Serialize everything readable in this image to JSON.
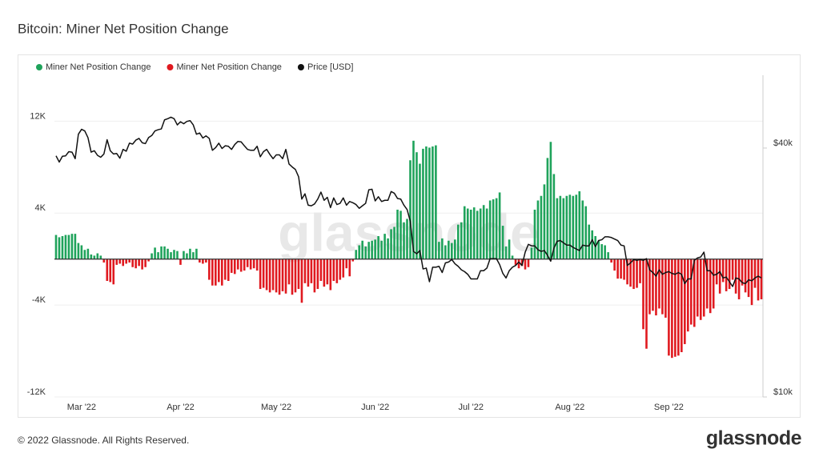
{
  "chart_data": {
    "type": "bar",
    "title": "Bitcoin: Miner Net Position Change",
    "watermark": "glassnode",
    "legend": "top-left",
    "grid": true,
    "ylim": [
      -12000,
      16000
    ],
    "yticks": [
      {
        "value": -12000,
        "label": "-12K"
      },
      {
        "value": -4000,
        "label": "-4K"
      },
      {
        "value": 4000,
        "label": "4K"
      },
      {
        "value": 12000,
        "label": "12K"
      }
    ],
    "y2scale": "log",
    "y2lim": [
      10000,
      60000
    ],
    "y2ticks": [
      {
        "value": 10000,
        "label": "$10k"
      },
      {
        "value": 40000,
        "label": "$40k"
      }
    ],
    "categories": [
      null,
      null,
      null,
      null,
      null,
      null,
      null,
      null,
      "Mar '22",
      null,
      null,
      null,
      null,
      null,
      null,
      null,
      null,
      null,
      null,
      null,
      null,
      null,
      null,
      null,
      null,
      null,
      null,
      null,
      null,
      null,
      null,
      null,
      null,
      null,
      null,
      null,
      null,
      null,
      null,
      "Apr '22",
      null,
      null,
      null,
      null,
      null,
      null,
      null,
      null,
      null,
      null,
      null,
      null,
      null,
      null,
      null,
      null,
      null,
      null,
      null,
      null,
      null,
      null,
      null,
      null,
      null,
      null,
      null,
      null,
      null,
      "May '22",
      null,
      null,
      null,
      null,
      null,
      null,
      null,
      null,
      null,
      null,
      null,
      null,
      null,
      null,
      null,
      null,
      null,
      null,
      null,
      null,
      null,
      null,
      null,
      null,
      null,
      null,
      null,
      null,
      null,
      null,
      "Jun '22",
      null,
      null,
      null,
      null,
      null,
      null,
      null,
      null,
      null,
      null,
      null,
      null,
      null,
      null,
      null,
      null,
      null,
      null,
      null,
      null,
      null,
      null,
      null,
      null,
      null,
      null,
      null,
      null,
      null,
      "Jul '22",
      null,
      null,
      null,
      null,
      null,
      null,
      null,
      null,
      null,
      null,
      null,
      null,
      null,
      null,
      null,
      null,
      null,
      null,
      null,
      null,
      null,
      null,
      null,
      null,
      null,
      null,
      null,
      null,
      null,
      null,
      "Aug '22",
      null,
      null,
      null,
      null,
      null,
      null,
      null,
      null,
      null,
      null,
      null,
      null,
      null,
      null,
      null,
      null,
      null,
      null,
      null,
      null,
      null,
      null,
      null,
      null,
      null,
      null,
      null,
      null,
      null,
      null,
      "Sep '22",
      null,
      null,
      null,
      null,
      null,
      null,
      null,
      null,
      null,
      null,
      null,
      null,
      null,
      null,
      null,
      null,
      null,
      null,
      null,
      null,
      null,
      null,
      null,
      null,
      null,
      null,
      null,
      null,
      null
    ],
    "series": [
      {
        "name": "Miner Net Position Change",
        "color": "#1fa35b",
        "values": [
          2100,
          1900,
          2000,
          2100,
          2100,
          2200,
          2200,
          1400,
          1200,
          800,
          900,
          400,
          300,
          500,
          300,
          null,
          null,
          null,
          null,
          null,
          null,
          null,
          null,
          null,
          null,
          null,
          null,
          null,
          null,
          null,
          500,
          1000,
          600,
          1100,
          1100,
          900,
          600,
          800,
          700,
          null,
          700,
          500,
          900,
          600,
          900,
          null,
          null,
          null,
          null,
          null,
          null,
          null,
          null,
          null,
          null,
          null,
          null,
          null,
          null,
          null,
          null,
          null,
          null,
          null,
          null,
          null,
          null,
          null,
          null,
          null,
          null,
          null,
          null,
          null,
          null,
          null,
          null,
          null,
          null,
          null,
          null,
          null,
          null,
          null,
          null,
          null,
          null,
          null,
          null,
          null,
          null,
          null,
          null,
          null,
          800,
          1200,
          1600,
          1100,
          1500,
          1600,
          1700,
          2000,
          1600,
          2200,
          1800,
          2600,
          2800,
          4300,
          4200,
          3200,
          3500,
          8600,
          10300,
          9300,
          8300,
          9600,
          9800,
          9700,
          9800,
          9900,
          1500,
          1800,
          1200,
          1600,
          1400,
          1700,
          3000,
          3200,
          4600,
          4400,
          4300,
          4500,
          4200,
          4400,
          4700,
          4400,
          5100,
          5200,
          5300,
          5800,
          2900,
          1100,
          1700,
          300,
          null,
          null,
          null,
          null,
          null,
          1000,
          4300,
          5100,
          5500,
          6500,
          8800,
          10200,
          7400,
          5300,
          5500,
          5300,
          5500,
          5600,
          5500,
          5600,
          5900,
          5100,
          4600,
          3000,
          2500,
          2000,
          1600,
          1300,
          1200,
          600,
          null,
          null,
          null,
          null,
          null,
          null,
          null,
          null,
          null,
          null,
          null,
          null,
          null,
          null,
          null,
          null,
          null,
          null,
          null,
          null,
          null,
          null,
          null,
          null,
          null,
          null,
          null,
          null,
          null,
          null,
          null,
          null,
          null,
          null,
          null,
          null,
          null,
          null,
          null,
          null,
          null,
          null,
          null,
          null,
          null,
          null,
          null,
          null
        ]
      },
      {
        "name": "Miner Net Position Change",
        "color": "#e0191f",
        "values": [
          null,
          null,
          null,
          null,
          null,
          null,
          null,
          null,
          null,
          null,
          null,
          null,
          null,
          null,
          null,
          -300,
          -1900,
          -2000,
          -2200,
          -500,
          -400,
          -600,
          -400,
          -300,
          -700,
          -800,
          -600,
          -900,
          -700,
          -200,
          null,
          null,
          null,
          null,
          null,
          null,
          null,
          null,
          null,
          -500,
          null,
          null,
          null,
          null,
          null,
          -300,
          -400,
          -300,
          -1800,
          -2300,
          -2300,
          -2000,
          -2300,
          -1800,
          -1900,
          -1200,
          -1300,
          -900,
          -1100,
          -1000,
          -700,
          -900,
          -800,
          -1000,
          -2600,
          -2500,
          -2700,
          -2900,
          -2700,
          -2900,
          -3100,
          -2800,
          -3000,
          -2200,
          -3100,
          -2900,
          -2600,
          -3800,
          -2100,
          -2400,
          -2100,
          -2900,
          -2600,
          -1900,
          -2400,
          -2200,
          -2700,
          -1900,
          -2100,
          -1800,
          -1600,
          -800,
          -1500,
          -200,
          null,
          null,
          null,
          null,
          null,
          null,
          null,
          null,
          null,
          null,
          null,
          null,
          null,
          null,
          null,
          null,
          null,
          null,
          null,
          null,
          null,
          null,
          null,
          null,
          null,
          null,
          null,
          null,
          null,
          null,
          null,
          null,
          null,
          null,
          null,
          null,
          null,
          null,
          null,
          null,
          null,
          null,
          null,
          null,
          null,
          null,
          null,
          null,
          null,
          null,
          -500,
          -800,
          -600,
          -900,
          -700,
          null,
          null,
          null,
          null,
          null,
          null,
          null,
          null,
          null,
          null,
          null,
          null,
          null,
          null,
          null,
          null,
          null,
          null,
          null,
          null,
          null,
          null,
          null,
          null,
          null,
          -300,
          -1000,
          -1700,
          -1700,
          -1800,
          -2200,
          -2400,
          -2600,
          -2500,
          -2100,
          -6100,
          -7800,
          -4800,
          -4500,
          -4900,
          -4300,
          -4800,
          -5100,
          -8400,
          -8600,
          -8500,
          -8400,
          -8100,
          -7400,
          -6300,
          -5700,
          -5900,
          -5000,
          -5300,
          -5000,
          -4300,
          -4700,
          -4300,
          -2200,
          -3000,
          -2000,
          -2800,
          -2600,
          -1800,
          -3000,
          -3500,
          -2300,
          -2900,
          -3300,
          -4000,
          -2500,
          -3600,
          -3500
        ]
      },
      {
        "name": "Price [USD]",
        "color": "#111111",
        "type": "line",
        "axis": "y2",
        "values": [
          38300,
          37000,
          38200,
          38300,
          39200,
          39100,
          37700,
          43200,
          44400,
          44000,
          42400,
          39100,
          39400,
          38400,
          38000,
          38700,
          41900,
          39400,
          38700,
          38800,
          37800,
          39700,
          39300,
          41100,
          40900,
          41800,
          42200,
          41200,
          41000,
          42400,
          42900,
          44000,
          44300,
          44500,
          46800,
          47100,
          47500,
          47100,
          45500,
          46300,
          45800,
          46400,
          46600,
          45500,
          43200,
          43500,
          42300,
          42800,
          42200,
          39500,
          40100,
          41100,
          39900,
          40500,
          40400,
          39700,
          40800,
          41500,
          41400,
          40500,
          39700,
          39500,
          39500,
          40400,
          38100,
          39200,
          39700,
          38600,
          37700,
          38500,
          38500,
          37700,
          39700,
          36600,
          36000,
          35500,
          34100,
          30100,
          31000,
          29100,
          29000,
          29300,
          30100,
          31300,
          29900,
          30400,
          28700,
          30300,
          29200,
          29400,
          30300,
          29100,
          29700,
          29500,
          29200,
          28600,
          29000,
          29400,
          31700,
          31800,
          29800,
          30500,
          29700,
          29900,
          29900,
          31400,
          31100,
          30200,
          30100,
          29100,
          28400,
          26600,
          22500,
          22200,
          22600,
          20400,
          20500,
          19000,
          20600,
          20600,
          20700,
          20000,
          21100,
          21200,
          21500,
          21000,
          20700,
          20300,
          20100,
          19800,
          19300,
          19300,
          19300,
          20200,
          20200,
          20500,
          21600,
          21600,
          21600,
          20900,
          19900,
          19400,
          20200,
          20600,
          20800,
          21200,
          20800,
          22400,
          23400,
          23200,
          23200,
          22700,
          22500,
          22600,
          22000,
          21300,
          22900,
          23800,
          23900,
          23600,
          23300,
          23300,
          23000,
          22800,
          22600,
          23300,
          23200,
          23200,
          24000,
          23100,
          23900,
          24000,
          24400,
          24400,
          24300,
          24100,
          23900,
          23300,
          23200,
          20800,
          21100,
          21500,
          21400,
          21500,
          21400,
          21600,
          20300,
          20000,
          19600,
          20300,
          19800,
          20000,
          20100,
          19900,
          19800,
          20000,
          19800,
          18800,
          19300,
          19300,
          21400,
          21700,
          21800,
          22400,
          20200,
          20200,
          19700,
          19800,
          20100,
          19400,
          19500,
          19000,
          18500,
          19400,
          19300,
          18900,
          18800,
          19200,
          19100,
          19400,
          19600,
          19400
        ]
      }
    ]
  },
  "footer": {
    "copyright": "© 2022 Glassnode. All Rights Reserved.",
    "brand": "glassnode"
  }
}
